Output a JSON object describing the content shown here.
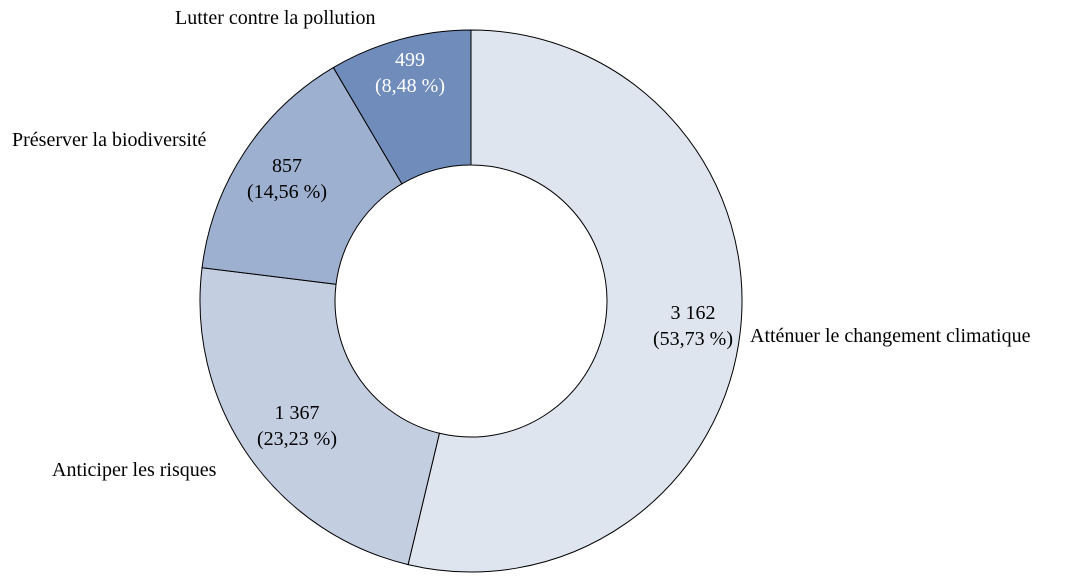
{
  "chart_data": {
    "type": "pie",
    "donut": true,
    "start": "top",
    "direction": "clockwise",
    "slices": [
      {
        "label": "Atténuer le changement climatique",
        "value": 3162,
        "value_text": "3 162",
        "percent_text": "(53,73 %)",
        "color": "#dfe5ef",
        "text_color": "#000000"
      },
      {
        "label": "Anticiper les risques",
        "value": 1367,
        "value_text": "1 367",
        "percent_text": "(23,23 %)",
        "color": "#c4cee1",
        "text_color": "#000000"
      },
      {
        "label": "Préserver la biodiversité",
        "value": 857,
        "value_text": "857",
        "percent_text": "(14,56 %)",
        "color": "#9eb0cf",
        "text_color": "#000000"
      },
      {
        "label": "Lutter contre la pollution",
        "value": 499,
        "value_text": "499",
        "percent_text": "(8,48 %)",
        "color": "#6f8cba",
        "text_color": "#ffffff"
      }
    ]
  }
}
